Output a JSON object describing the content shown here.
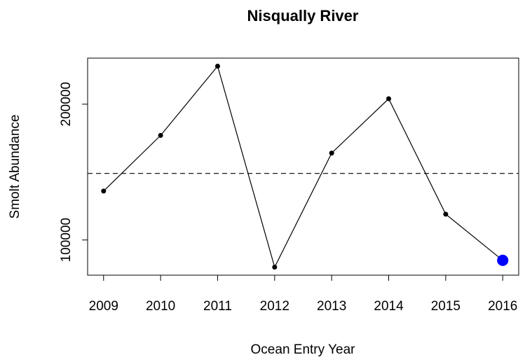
{
  "chart_data": {
    "type": "line",
    "title": "Nisqually River",
    "x_label": "Ocean Entry Year",
    "y_label": "Smolt Abundance",
    "x": [
      2009,
      2010,
      2011,
      2012,
      2013,
      2014,
      2015,
      2016
    ],
    "series": [
      {
        "color": "#000000",
        "values": [
          136000,
          177000,
          228000,
          80000,
          164000,
          204000,
          119000,
          85000
        ],
        "marker_colors": [
          "#000000",
          "#000000",
          "#000000",
          "#000000",
          "#000000",
          "#000000",
          "#000000",
          "#0000ff"
        ],
        "marker_sizes": [
          1,
          1,
          1,
          1,
          1,
          1,
          1,
          2.3
        ]
      }
    ],
    "hline": 149000,
    "xlim": [
      2008.72,
      2016.28
    ],
    "ylim": [
      74080,
      233920
    ],
    "xticks": [
      2009,
      2010,
      2011,
      2012,
      2013,
      2014,
      2015,
      2016
    ],
    "yticks": [
      100000,
      200000
    ]
  }
}
